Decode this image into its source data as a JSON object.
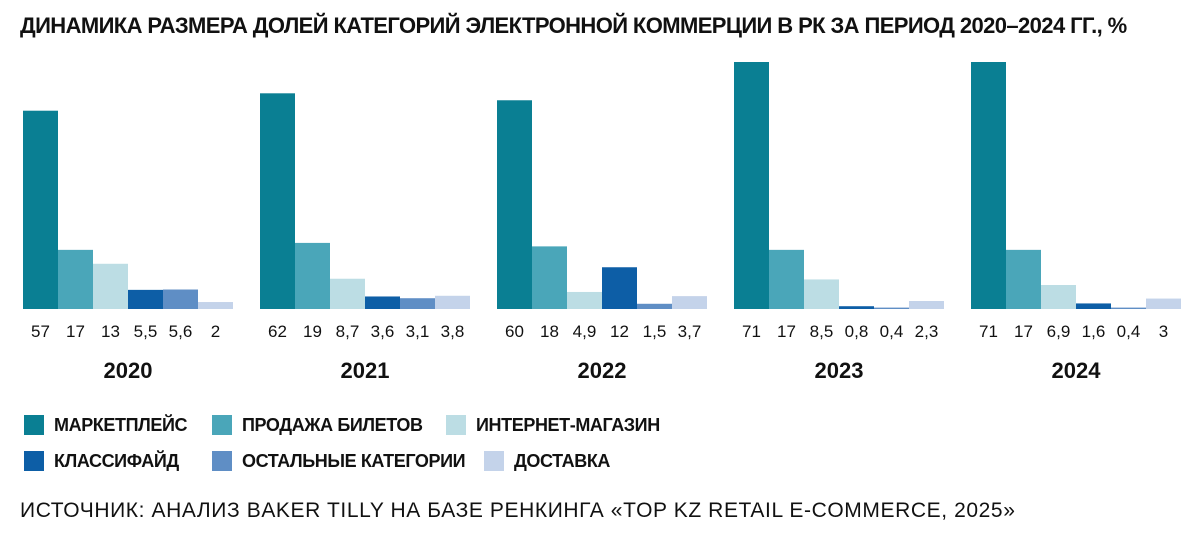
{
  "chart_data": {
    "type": "bar",
    "title": "ДИНАМИКА РАЗМЕРА ДОЛЕЙ КАТЕГОРИЙ ЭЛЕКТРОННОЙ КОММЕРЦИИ В РК ЗА ПЕРИОД 2020–2024 ГГ., %",
    "xlabel": "",
    "ylabel": "",
    "grid": false,
    "legend_position": "bottom-left",
    "ylim": [
      0,
      71
    ],
    "categories": [
      "2020",
      "2021",
      "2022",
      "2023",
      "2024"
    ],
    "series": [
      {
        "name": "МАРКЕТПЛЕЙС",
        "color": "#0a7f93",
        "values": [
          57,
          62,
          60,
          71,
          71
        ],
        "labels": [
          "57",
          "62",
          "60",
          "71",
          "71"
        ]
      },
      {
        "name": "ПРОДАЖА БИЛЕТОВ",
        "color": "#4aa6b9",
        "values": [
          17,
          19,
          18,
          17,
          17
        ],
        "labels": [
          "17",
          "19",
          "18",
          "17",
          "17"
        ]
      },
      {
        "name": "ИНТЕРНЕТ-МАГАЗИН",
        "color": "#bcdde4",
        "values": [
          13,
          8.7,
          4.9,
          8.5,
          6.9
        ],
        "labels": [
          "13",
          "8,7",
          "4,9",
          "8,5",
          "6,9"
        ]
      },
      {
        "name": "КЛАССИФАЙД",
        "color": "#0d5ea6",
        "values": [
          5.5,
          3.6,
          12,
          0.8,
          1.6
        ],
        "labels": [
          "5,5",
          "3,6",
          "12",
          "0,8",
          "1,6"
        ]
      },
      {
        "name": "ОСТАЛЬНЫЕ КАТЕГОРИИ",
        "color": "#5f8ec5",
        "values": [
          5.6,
          3.1,
          1.5,
          0.4,
          0.4
        ],
        "labels": [
          "5,6",
          "3,1",
          "1,5",
          "0,4",
          "0,4"
        ]
      },
      {
        "name": "ДОСТАВКА",
        "color": "#c4d3ea",
        "values": [
          2,
          3.8,
          3.7,
          2.3,
          3
        ],
        "labels": [
          "2",
          "3,8",
          "3,7",
          "2,3",
          "3"
        ]
      }
    ]
  },
  "source": "ИСТОЧНИК: АНАЛИЗ BAKER TILLY НА БАЗЕ РЕНКИНГА «TOP KZ RETAIL E-COMMERCE, 2025»"
}
